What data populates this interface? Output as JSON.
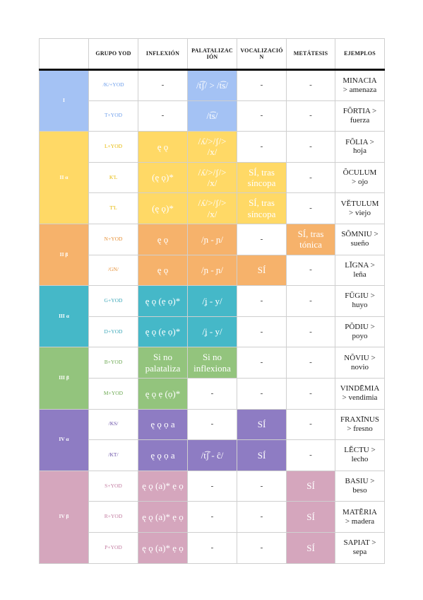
{
  "headers": [
    "",
    "GRUPO YOD",
    "INFLEXIÓN",
    "PALATALIZACIÓN",
    "VOCALIZACIÓN",
    "METÁTESIS",
    "EJEMPLOS"
  ],
  "header_display": [
    "",
    "GRUPO YOD",
    "INFLEXIÓN",
    "PALATALIZAC\nIÓN",
    "VOCALIZACIÓ\nN",
    "METÁTESIS",
    "EJEMPLOS"
  ],
  "colors": {
    "blue": "#a4c2f4",
    "blue_text": "#6d9eeb",
    "yellow": "#ffd966",
    "yellow_text": "#e6b800",
    "orange": "#f6b26b",
    "orange_text": "#e69138",
    "teal": "#45b8c8",
    "teal_text": "#3aa7b8",
    "green": "#93c47d",
    "green_text": "#6aa84f",
    "purple": "#8e7cc3",
    "purple_text": "#674ea7",
    "pink": "#d5a6bd",
    "pink_text": "#c27ba0"
  },
  "groups": [
    {
      "label": "I",
      "color": "blue",
      "rows": [
        {
          "yod": "/K/+YOD",
          "inflexion": "-",
          "inflexion_fill": false,
          "palatalizacion": "/t͡ʃ/ > /t͡s/",
          "pal_fill": true,
          "vocalizacion": "-",
          "voc_fill": false,
          "metatesis": "-",
          "met_fill": false,
          "ejemplo": "MINACIA\n> amenaza"
        },
        {
          "yod": "T+YOD",
          "inflexion": "-",
          "inflexion_fill": false,
          "palatalizacion": "/t͡s/",
          "pal_fill": true,
          "vocalizacion": "-",
          "voc_fill": false,
          "metatesis": "-",
          "met_fill": false,
          "ejemplo": "FŎRTIA >\nfuerza"
        }
      ]
    },
    {
      "label": "II α",
      "color": "yellow",
      "rows": [
        {
          "yod": "L+YOD",
          "inflexion": "ę ǫ",
          "inflexion_fill": true,
          "palatalizacion": "/ʎ/>/ʃ/>\n/x/",
          "pal_fill": true,
          "vocalizacion": "-",
          "voc_fill": false,
          "metatesis": "-",
          "met_fill": false,
          "ejemplo": "FŎLIA >\nhoja"
        },
        {
          "yod": "K'L",
          "inflexion": "(ę ǫ)*",
          "inflexion_fill": true,
          "palatalizacion": "/ʎ/>/ʃ/>\n/x/",
          "pal_fill": true,
          "vocalizacion": "SÍ, tras\nsíncopa",
          "voc_fill": true,
          "metatesis": "-",
          "met_fill": false,
          "ejemplo": "ŎCULUM\n> ojo"
        },
        {
          "yod": "T'L",
          "inflexion": "(ę ǫ)*",
          "inflexion_fill": true,
          "palatalizacion": "/ʎ/>/ʃ/>\n/x/",
          "pal_fill": true,
          "vocalizacion": "SÍ, tras\nsíncopa",
          "voc_fill": true,
          "metatesis": "-",
          "met_fill": false,
          "ejemplo": "VĔTULUM\n> viejo"
        }
      ]
    },
    {
      "label": "II β",
      "color": "orange",
      "rows": [
        {
          "yod": "N+YOD",
          "inflexion": "ę ǫ",
          "inflexion_fill": true,
          "palatalizacion": "/ɲ - ɲ/",
          "pal_fill": true,
          "vocalizacion": "-",
          "voc_fill": false,
          "metatesis": "SÍ, tras\ntónica",
          "met_fill": true,
          "ejemplo": "SŎMNIU >\nsueño"
        },
        {
          "yod": "/GN/",
          "inflexion": "ę ǫ",
          "inflexion_fill": true,
          "palatalizacion": "/ɲ - ɲ/",
          "pal_fill": true,
          "vocalizacion": "SÍ",
          "voc_fill": true,
          "metatesis": "-",
          "met_fill": false,
          "ejemplo": "LĬGNA >\nleña"
        }
      ]
    },
    {
      "label": "III α",
      "color": "teal",
      "rows": [
        {
          "yod": "G+YOD",
          "inflexion": "ę ǫ (ẹ ọ)*",
          "inflexion_fill": true,
          "palatalizacion": "/ʝ - y/",
          "pal_fill": true,
          "vocalizacion": "-",
          "voc_fill": false,
          "metatesis": "-",
          "met_fill": false,
          "ejemplo": "FŪGIU >\nhuyo"
        },
        {
          "yod": "D+YOD",
          "inflexion": "ę ǫ (ẹ ọ)*",
          "inflexion_fill": true,
          "palatalizacion": "/ʝ - y/",
          "pal_fill": true,
          "vocalizacion": "-",
          "voc_fill": false,
          "metatesis": "-",
          "met_fill": false,
          "ejemplo": "PŎDIU >\npoyo"
        }
      ]
    },
    {
      "label": "III β",
      "color": "green",
      "rows": [
        {
          "yod": "B+YOD",
          "inflexion": "Si no\npalataliza",
          "inflexion_fill": true,
          "palatalizacion": "Si no\ninflexiona",
          "pal_fill": true,
          "vocalizacion": "-",
          "voc_fill": false,
          "metatesis": "-",
          "met_fill": false,
          "ejemplo": "NŎVIU >\nnovio"
        },
        {
          "yod": "M+YOD",
          "inflexion": "ę ǫ ẹ (ọ)*",
          "inflexion_fill": true,
          "palatalizacion": "-",
          "pal_fill": false,
          "vocalizacion": "-",
          "voc_fill": false,
          "metatesis": "-",
          "met_fill": false,
          "ejemplo": "VINDĒMIA\n> vendimia"
        }
      ]
    },
    {
      "label": "IV α",
      "color": "purple",
      "rows": [
        {
          "yod": "/KS/",
          "inflexion": "ę ǫ ọ a",
          "inflexion_fill": true,
          "palatalizacion": "-",
          "pal_fill": false,
          "vocalizacion": "SÍ",
          "voc_fill": true,
          "metatesis": "-",
          "met_fill": false,
          "ejemplo": "FRAXĪNUS\n> fresno"
        },
        {
          "yod": "/KT/",
          "inflexion": "ę ǫ ọ a",
          "inflexion_fill": true,
          "palatalizacion": "/t͡ʃ - ĉ/",
          "pal_fill": true,
          "vocalizacion": "SÍ",
          "voc_fill": true,
          "metatesis": "-",
          "met_fill": false,
          "ejemplo": "LĔCTU >\nlecho"
        }
      ]
    },
    {
      "label": "IV β",
      "color": "pink",
      "rows": [
        {
          "yod": "S+YOD",
          "inflexion": "ę ǫ (a)* ẹ ọ",
          "inflexion_fill": true,
          "palatalizacion": "-",
          "pal_fill": false,
          "vocalizacion": "-",
          "voc_fill": false,
          "metatesis": "SÍ",
          "met_fill": true,
          "ejemplo": "BASIU >\nbeso"
        },
        {
          "yod": "R+YOD",
          "inflexion": "ę ǫ (a)* ẹ ọ",
          "inflexion_fill": true,
          "palatalizacion": "-",
          "pal_fill": false,
          "vocalizacion": "-",
          "voc_fill": false,
          "metatesis": "SÍ",
          "met_fill": true,
          "ejemplo": "MATĔRIA\n> madera"
        },
        {
          "yod": "P+YOD",
          "inflexion": "ę ǫ (a)* ẹ ọ",
          "inflexion_fill": true,
          "palatalizacion": "-",
          "pal_fill": false,
          "vocalizacion": "-",
          "voc_fill": false,
          "metatesis": "SÍ",
          "met_fill": true,
          "ejemplo": "SAPIAT >\nsepa"
        }
      ]
    }
  ]
}
